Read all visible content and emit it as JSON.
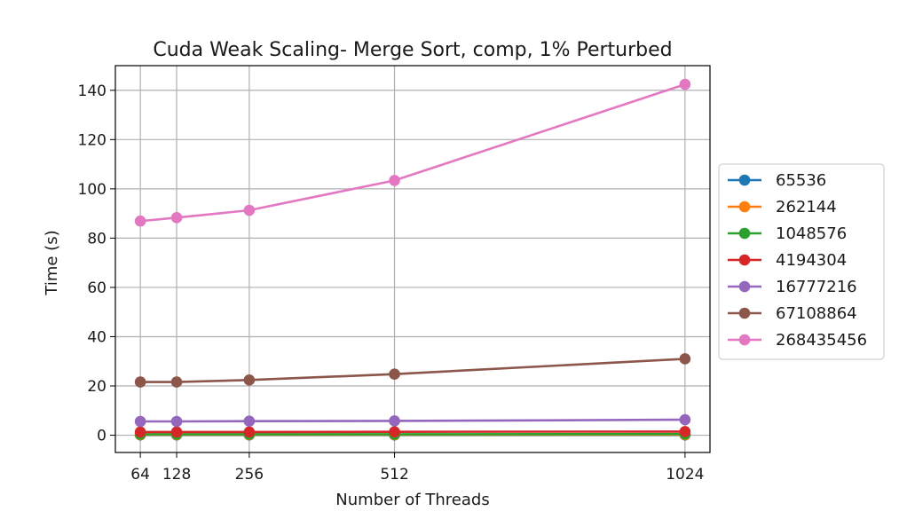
{
  "chart_data": {
    "type": "line",
    "title": "Cuda Weak Scaling- Merge Sort, comp, 1% Perturbed",
    "xlabel": "Number of Threads",
    "ylabel": "Time (s)",
    "x": [
      64,
      128,
      256,
      512,
      1024
    ],
    "xticks": [
      64,
      128,
      256,
      512,
      1024
    ],
    "yticks": [
      0,
      20,
      40,
      60,
      80,
      100,
      120,
      140
    ],
    "xlim": [
      20,
      1068
    ],
    "ylim": [
      -7,
      150
    ],
    "grid": true,
    "legend_position": "center-right-outside",
    "series": [
      {
        "name": "65536",
        "color": "#1f77b4",
        "values": [
          0.1,
          0.1,
          0.1,
          0.1,
          0.1
        ]
      },
      {
        "name": "262144",
        "color": "#ff7f0e",
        "values": [
          0.2,
          0.2,
          0.2,
          0.2,
          0.2
        ]
      },
      {
        "name": "1048576",
        "color": "#2ca02c",
        "values": [
          0.4,
          0.4,
          0.4,
          0.4,
          0.5
        ]
      },
      {
        "name": "4194304",
        "color": "#d62728",
        "values": [
          1.3,
          1.3,
          1.3,
          1.4,
          1.5
        ]
      },
      {
        "name": "16777216",
        "color": "#9467bd",
        "values": [
          5.6,
          5.6,
          5.7,
          5.8,
          6.3
        ]
      },
      {
        "name": "67108864",
        "color": "#8c564b",
        "values": [
          21.6,
          21.6,
          22.4,
          24.8,
          31.0
        ]
      },
      {
        "name": "268435456",
        "color": "#e377c2",
        "values": [
          86.9,
          88.3,
          91.3,
          103.4,
          142.4
        ]
      }
    ]
  }
}
